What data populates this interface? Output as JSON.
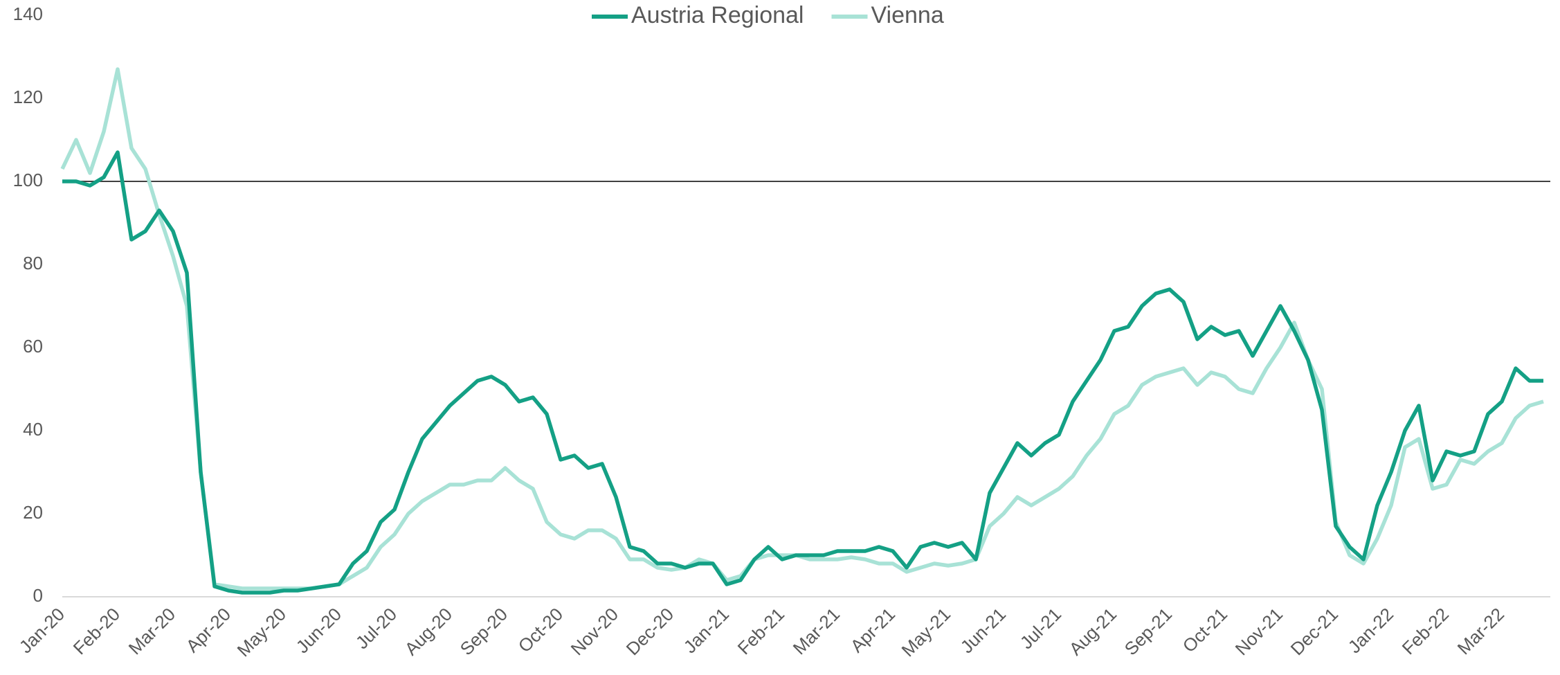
{
  "chart_data": {
    "type": "line",
    "categories": [
      "Jan-20",
      null,
      null,
      null,
      "Feb-20",
      null,
      null,
      null,
      "Mar-20",
      null,
      null,
      null,
      "Apr-20",
      null,
      null,
      null,
      "May-20",
      null,
      null,
      null,
      "Jun-20",
      null,
      null,
      null,
      "Jul-20",
      null,
      null,
      null,
      "Aug-20",
      null,
      null,
      null,
      "Sep-20",
      null,
      null,
      null,
      "Oct-20",
      null,
      null,
      null,
      "Nov-20",
      null,
      null,
      null,
      "Dec-20",
      null,
      null,
      null,
      "Jan-21",
      null,
      null,
      null,
      "Feb-21",
      null,
      null,
      null,
      "Mar-21",
      null,
      null,
      null,
      "Apr-21",
      null,
      null,
      null,
      "May-21",
      null,
      null,
      null,
      "Jun-21",
      null,
      null,
      null,
      "Jul-21",
      null,
      null,
      null,
      "Aug-21",
      null,
      null,
      null,
      "Sep-21",
      null,
      null,
      null,
      "Oct-21",
      null,
      null,
      null,
      "Nov-21",
      null,
      null,
      null,
      "Dec-21",
      null,
      null,
      null,
      "Jan-22",
      null,
      null,
      null,
      "Feb-22",
      null,
      null,
      null,
      "Mar-22",
      null,
      null,
      null
    ],
    "series": [
      {
        "name": "Austria Regional",
        "color": "#14a085",
        "values": [
          100,
          100,
          99,
          101,
          107,
          86,
          88,
          93,
          88,
          78,
          30,
          2.5,
          1.5,
          1,
          1,
          1,
          1.5,
          1.5,
          2,
          2.5,
          3,
          8,
          11,
          18,
          21,
          30,
          38,
          42,
          46,
          49,
          52,
          53,
          51,
          47,
          48,
          44,
          33,
          34,
          31,
          32,
          24,
          12,
          11,
          8,
          8,
          7,
          8,
          8,
          3,
          4,
          9,
          12,
          9,
          10,
          10,
          10,
          11,
          11,
          11,
          12,
          11,
          7,
          12,
          13,
          12,
          13,
          9,
          25,
          31,
          37,
          34,
          37,
          39,
          47,
          52,
          57,
          64,
          65,
          70,
          73,
          74,
          71,
          62,
          65,
          63,
          64,
          58,
          64,
          70,
          64,
          57,
          45,
          17,
          12,
          9,
          22,
          30,
          40,
          46,
          28,
          35,
          34,
          35,
          44,
          47,
          55,
          52,
          52
        ]
      },
      {
        "name": "Vienna",
        "color": "#a8e2d6",
        "values": [
          103,
          110,
          102,
          112,
          127,
          108,
          103,
          92,
          82,
          70,
          30,
          3,
          2.5,
          2,
          2,
          2,
          2,
          2,
          2,
          2.5,
          3,
          5,
          7,
          12,
          15,
          20,
          23,
          25,
          27,
          27,
          28,
          28,
          31,
          28,
          26,
          18,
          15,
          14,
          16,
          16,
          14,
          9,
          9,
          7,
          6.5,
          7,
          9,
          8,
          4,
          5,
          9,
          10,
          10,
          10,
          9,
          9,
          9,
          9.5,
          9,
          8,
          8,
          6,
          7,
          8,
          7.5,
          8,
          9,
          17,
          20,
          24,
          22,
          24,
          26,
          29,
          34,
          38,
          44,
          46,
          51,
          53,
          54,
          55,
          51,
          54,
          53,
          50,
          49,
          55,
          60,
          66,
          57,
          50,
          18,
          10,
          8,
          14,
          22,
          36,
          38,
          26,
          27,
          33,
          32,
          35,
          37,
          43,
          46,
          47
        ]
      }
    ],
    "reference_line": 100,
    "ylim": [
      0,
      140
    ],
    "yticks": [
      0,
      20,
      40,
      60,
      80,
      100,
      120,
      140
    ],
    "legend": "top",
    "grid": false
  }
}
